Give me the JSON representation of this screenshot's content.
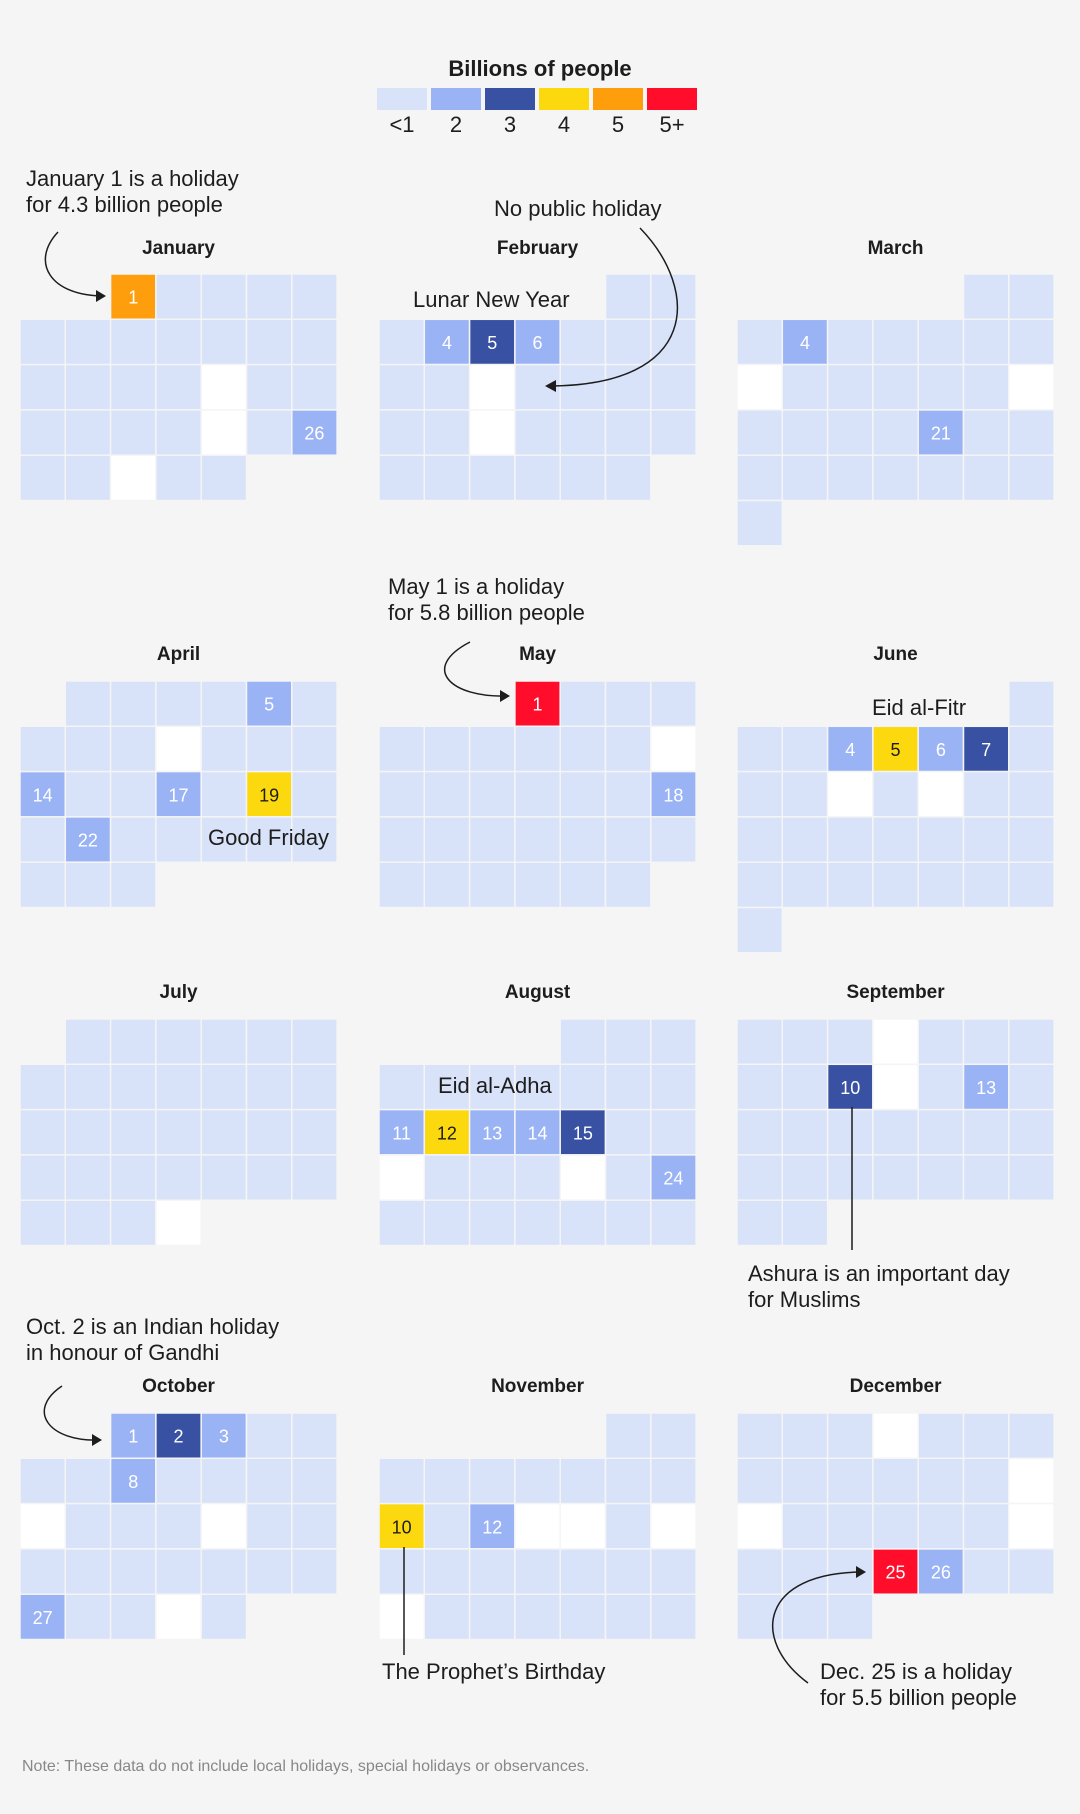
{
  "chart_data": {
    "type": "heatmap",
    "title": "Billions of people",
    "colors": {
      "white": "#ffffff",
      "lt1": "#d8e2f8",
      "b1": "#9ab3f5",
      "b2": "#3851a3",
      "b3": "#fcd90e",
      "b4": "#ff9e0d",
      "b5": "#ff0d2b"
    },
    "legend": [
      {
        "label": "<1",
        "color": "#d8e2f8"
      },
      {
        "label": "2",
        "color": "#9ab3f5"
      },
      {
        "label": "3",
        "color": "#3851a3"
      },
      {
        "label": "4",
        "color": "#fcd90e"
      },
      {
        "label": "5",
        "color": "#ff9e0d"
      },
      {
        "label": "5+",
        "color": "#ff0d2b"
      }
    ],
    "months": [
      {
        "name": "January",
        "start_col": 2,
        "days": 31,
        "highlights": [
          {
            "day": 1,
            "level": "b4"
          },
          {
            "day": 26,
            "level": "b1"
          }
        ],
        "no_holiday": [
          17,
          24,
          29
        ]
      },
      {
        "name": "February",
        "start_col": 5,
        "days": 29,
        "highlights": [
          {
            "day": 4,
            "level": "b1"
          },
          {
            "day": 5,
            "level": "b2"
          },
          {
            "day": 6,
            "level": "b1"
          }
        ],
        "no_holiday": [
          12,
          19
        ]
      },
      {
        "name": "March",
        "start_col": 5,
        "days": 31,
        "highlights": [
          {
            "day": 4,
            "level": "b1"
          },
          {
            "day": 21,
            "level": "b1"
          }
        ],
        "no_holiday": [
          10,
          16
        ]
      },
      {
        "name": "April",
        "start_col": 1,
        "days": 30,
        "highlights": [
          {
            "day": 5,
            "level": "b1"
          },
          {
            "day": 14,
            "level": "b1"
          },
          {
            "day": 17,
            "level": "b1"
          },
          {
            "day": 19,
            "level": "b3"
          },
          {
            "day": 22,
            "level": "b1"
          }
        ],
        "no_holiday": [
          10
        ]
      },
      {
        "name": "May",
        "start_col": 3,
        "days": 31,
        "highlights": [
          {
            "day": 1,
            "level": "b5"
          },
          {
            "day": 18,
            "level": "b1"
          }
        ],
        "no_holiday": [
          11
        ]
      },
      {
        "name": "June",
        "start_col": 6,
        "days": 30,
        "highlights": [
          {
            "day": 4,
            "level": "b1"
          },
          {
            "day": 5,
            "level": "b3"
          },
          {
            "day": 6,
            "level": "b1"
          },
          {
            "day": 7,
            "level": "b2"
          }
        ],
        "no_holiday": [
          11,
          13
        ]
      },
      {
        "name": "July",
        "start_col": 1,
        "days": 31,
        "highlights": [],
        "no_holiday": [
          31
        ]
      },
      {
        "name": "August",
        "start_col": 4,
        "days": 31,
        "highlights": [
          {
            "day": 11,
            "level": "b1"
          },
          {
            "day": 12,
            "level": "b3"
          },
          {
            "day": 13,
            "level": "b1"
          },
          {
            "day": 14,
            "level": "b1"
          },
          {
            "day": 15,
            "level": "b2"
          },
          {
            "day": 24,
            "level": "b1"
          }
        ],
        "no_holiday": [
          18,
          22
        ]
      },
      {
        "name": "September",
        "start_col": 0,
        "days": 30,
        "highlights": [
          {
            "day": 10,
            "level": "b2"
          },
          {
            "day": 13,
            "level": "b1"
          }
        ],
        "no_holiday": [
          4,
          11
        ]
      },
      {
        "name": "October",
        "start_col": 2,
        "days": 31,
        "highlights": [
          {
            "day": 1,
            "level": "b1"
          },
          {
            "day": 2,
            "level": "b2"
          },
          {
            "day": 3,
            "level": "b1"
          },
          {
            "day": 8,
            "level": "b1"
          },
          {
            "day": 27,
            "level": "b1"
          }
        ],
        "no_holiday": [
          13,
          17,
          30
        ]
      },
      {
        "name": "November",
        "start_col": 5,
        "days": 30,
        "highlights": [
          {
            "day": 10,
            "level": "b3"
          },
          {
            "day": 12,
            "level": "b1"
          }
        ],
        "no_holiday": [
          13,
          14,
          16,
          24
        ]
      },
      {
        "name": "December",
        "start_col": 0,
        "days": 31,
        "highlights": [
          {
            "day": 25,
            "level": "b5"
          },
          {
            "day": 26,
            "level": "b1"
          }
        ],
        "no_holiday": [
          4,
          14,
          15,
          21
        ]
      }
    ],
    "annotations": {
      "jan1": "January 1 is a holiday\nfor 4.3 billion people",
      "no_holiday": "No public holiday",
      "lunar_new_year": "Lunar New Year",
      "may1": "May 1 is a holiday\nfor 5.8 billion people",
      "eid_fitr": "Eid al-Fitr",
      "good_friday": "Good Friday",
      "eid_adha": "Eid al-Adha",
      "ashura": "Ashura is an important day\nfor Muslims",
      "gandhi": "Oct. 2 is an Indian holiday\nin honour of Gandhi",
      "prophet": "The Prophet’s Birthday",
      "dec25": "Dec. 25 is a holiday\nfor 5.5 billion people"
    }
  },
  "note": "Note: These data do not include local holidays, special holidays or observances."
}
